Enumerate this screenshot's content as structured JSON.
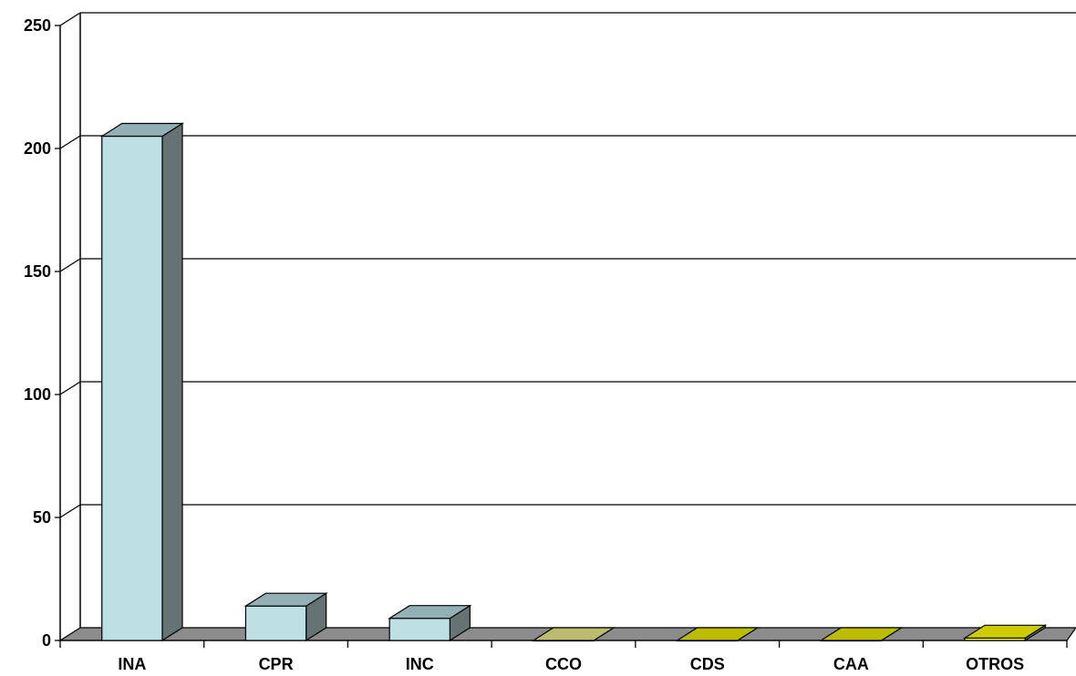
{
  "chart_data": {
    "type": "bar",
    "categories": [
      "INA",
      "CPR",
      "INC",
      "CCO",
      "CDS",
      "CAA",
      "OTROS"
    ],
    "values": [
      205,
      14,
      9,
      0,
      0,
      0,
      1
    ],
    "ylim": [
      0,
      250
    ],
    "yticks": [
      0,
      50,
      100,
      150,
      200,
      250
    ],
    "grid": true,
    "title": "",
    "xlabel": "",
    "ylabel": "",
    "colors": {
      "bar_front": [
        "#bce0e4",
        "#bce0e4",
        "#bce0e4",
        "#c4c47a",
        "#c6c600",
        "#c6c600",
        "#ffff33"
      ],
      "bar_top": [
        "#93b1b4",
        "#93b1b4",
        "#93b1b4",
        "#bcbc6e",
        "#bcbc00",
        "#bcbc00",
        "#cccc00"
      ],
      "bar_side": "#667373",
      "floor": "#8c8c8c",
      "gridline": "#000000"
    }
  }
}
